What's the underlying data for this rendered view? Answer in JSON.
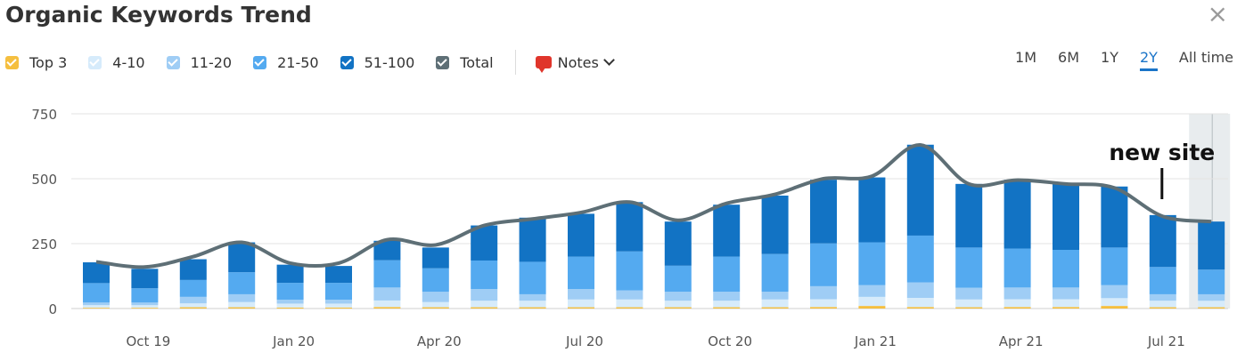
{
  "header": {
    "title": "Organic Keywords Trend",
    "close_glyph": "×"
  },
  "legend": [
    {
      "label": "Top 3",
      "color": "#f5bf3f",
      "checked": true
    },
    {
      "label": "4-10",
      "color": "#d6ebfb",
      "checked": true
    },
    {
      "label": "11-20",
      "color": "#9fcdf5",
      "checked": true
    },
    {
      "label": "21-50",
      "color": "#54aaf0",
      "checked": true
    },
    {
      "label": "51-100",
      "color": "#1273c4",
      "checked": true
    },
    {
      "label": "Total",
      "color": "#5e6f76",
      "checked": true
    }
  ],
  "notes": {
    "label": "Notes",
    "icon": "speech-bubble-icon",
    "color": "#e0352b"
  },
  "periods": [
    {
      "label": "1M",
      "active": false
    },
    {
      "label": "6M",
      "active": false
    },
    {
      "label": "1Y",
      "active": false
    },
    {
      "label": "2Y",
      "active": true
    },
    {
      "label": "All time",
      "active": false
    }
  ],
  "annotation": {
    "text": "new site"
  },
  "chart_data": {
    "type": "bar",
    "stacked": true,
    "categories": [
      "Sep 19",
      "Oct 19",
      "Nov 19",
      "Dec 19",
      "Jan 20",
      "Feb 20",
      "Mar 20",
      "Apr 20",
      "May 20",
      "Jun 20",
      "Jul 20",
      "Aug 20",
      "Sep 20",
      "Oct 20",
      "Nov 20",
      "Dec 20",
      "Jan 21",
      "Feb 21",
      "Mar 21",
      "Apr 21",
      "May 21",
      "Jun 21",
      "Jul 21",
      "Aug 21"
    ],
    "x_tick_labels": [
      {
        "label": "Oct 19",
        "index": 1
      },
      {
        "label": "Jan 20",
        "index": 4
      },
      {
        "label": "Apr 20",
        "index": 7
      },
      {
        "label": "Jul 20",
        "index": 10
      },
      {
        "label": "Oct 20",
        "index": 13
      },
      {
        "label": "Jan 21",
        "index": 16
      },
      {
        "label": "Apr 21",
        "index": 19
      },
      {
        "label": "Jul 21",
        "index": 22
      }
    ],
    "series": [
      {
        "name": "Top 3",
        "color": "#f5bf3f",
        "values": [
          3,
          3,
          5,
          5,
          4,
          4,
          6,
          5,
          5,
          5,
          5,
          5,
          5,
          5,
          5,
          6,
          10,
          6,
          5,
          6,
          6,
          10,
          5,
          5
        ]
      },
      {
        "name": "4-10",
        "color": "#d6ebfb",
        "values": [
          10,
          10,
          15,
          20,
          15,
          15,
          25,
          20,
          25,
          25,
          30,
          30,
          25,
          25,
          30,
          30,
          35,
          35,
          30,
          30,
          30,
          30,
          25,
          25
        ]
      },
      {
        "name": "11-20",
        "color": "#9fcdf5",
        "values": [
          10,
          10,
          25,
          30,
          15,
          15,
          50,
          40,
          45,
          25,
          40,
          35,
          35,
          35,
          30,
          50,
          45,
          60,
          45,
          45,
          45,
          50,
          25,
          25
        ]
      },
      {
        "name": "21-50",
        "color": "#54aaf0",
        "values": [
          75,
          55,
          65,
          85,
          65,
          65,
          105,
          90,
          110,
          125,
          125,
          150,
          100,
          135,
          145,
          165,
          165,
          180,
          155,
          150,
          145,
          145,
          105,
          95
        ]
      },
      {
        "name": "51-100",
        "color": "#1273c4",
        "values": [
          80,
          75,
          80,
          115,
          70,
          65,
          75,
          80,
          135,
          170,
          165,
          190,
          170,
          200,
          225,
          245,
          250,
          350,
          245,
          265,
          255,
          235,
          200,
          185
        ]
      }
    ],
    "total": {
      "name": "Total",
      "color": "#5e6f76",
      "values": [
        180,
        160,
        200,
        255,
        175,
        175,
        265,
        245,
        320,
        345,
        370,
        410,
        340,
        405,
        440,
        500,
        510,
        630,
        480,
        495,
        480,
        465,
        355,
        335
      ]
    },
    "ylim": [
      0,
      750
    ],
    "yticks": [
      0,
      250,
      500,
      750
    ],
    "highlight_index": 23,
    "grid": true
  }
}
